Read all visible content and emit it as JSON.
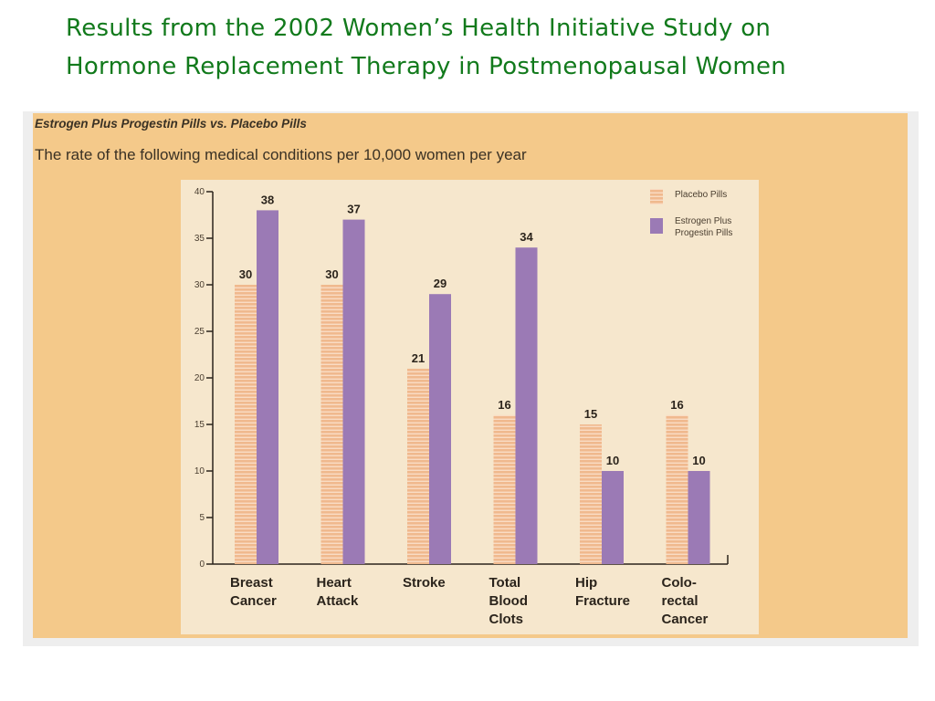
{
  "slide": {
    "title_line1": "Results from the 2002 Women’s Health Initiative Study on",
    "title_line2": "Hormone Replacement Therapy in Postmenopausal Women"
  },
  "figure": {
    "heading": "Estrogen Plus Progestin Pills vs. Placebo Pills",
    "subheading": "The rate of the following medical conditions per 10,000 women per year"
  },
  "chart_data": {
    "type": "bar",
    "categories": [
      [
        "Breast",
        "Cancer"
      ],
      [
        "Heart",
        "Attack"
      ],
      [
        "Stroke"
      ],
      [
        "Total",
        "Blood",
        "Clots"
      ],
      [
        "Hip",
        "Fracture"
      ],
      [
        "Colo-",
        "rectal",
        "Cancer"
      ]
    ],
    "series": [
      {
        "name": "Placebo Pills",
        "values": [
          30,
          30,
          21,
          16,
          15,
          16
        ],
        "color": "#f0b98e",
        "pattern": "horizontal-stripes"
      },
      {
        "name": "Estrogen Plus Progestin Pills",
        "legend_lines": [
          "Estrogen Plus",
          "Progestin Pills"
        ],
        "values": [
          38,
          37,
          29,
          34,
          10,
          10
        ],
        "color": "#9b7ab5"
      }
    ],
    "yticks": [
      0,
      5,
      10,
      15,
      20,
      25,
      30,
      35,
      40
    ],
    "ylim": [
      0,
      40
    ],
    "data_labels": true,
    "legend_position": "top-right",
    "grid": false,
    "plot_background": "#f6e7cd"
  }
}
